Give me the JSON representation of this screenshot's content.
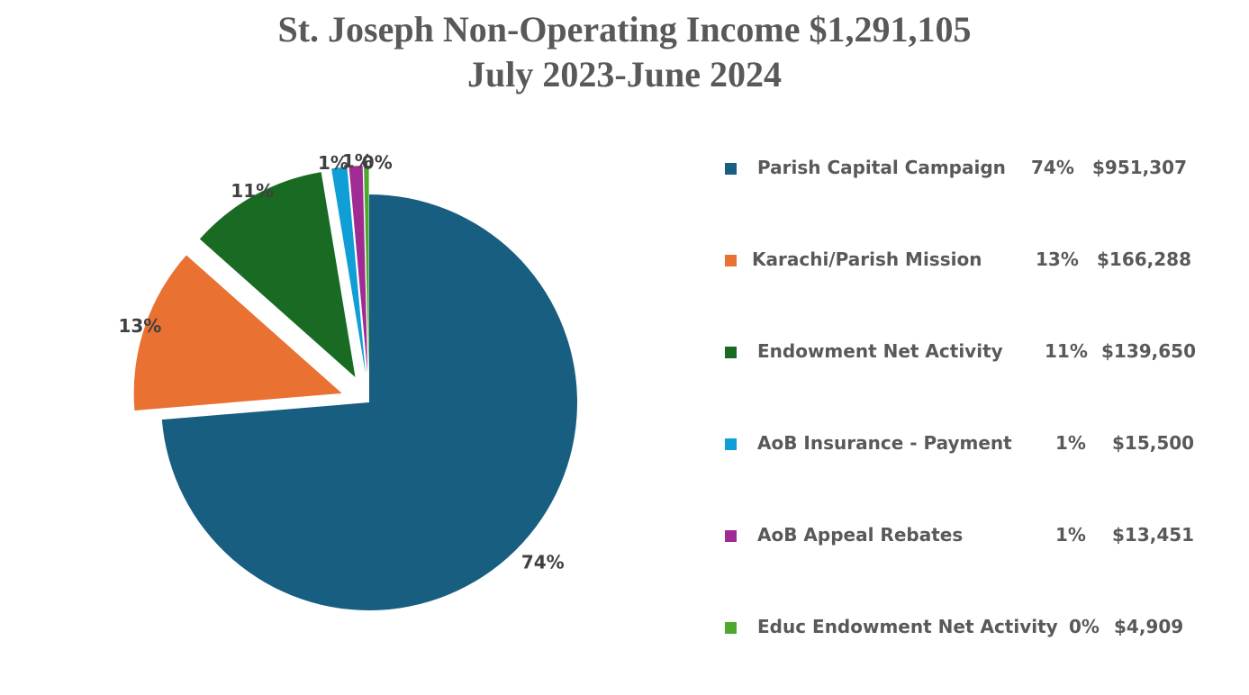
{
  "title": {
    "line1": "St. Joseph Non-Operating Income $1,291,105",
    "line2": "July 2023-June 2024"
  },
  "chart_data": {
    "type": "pie",
    "title": "St. Joseph Non-Operating Income $1,291,105 July 2023-June 2024",
    "categories": [
      "Parish Capital Campaign",
      "Karachi/Parish Mission",
      "Endowment Net Activity",
      "AoB Insurance - Payment",
      "AoB Appeal Rebates",
      "Educ Endowment Net Activity"
    ],
    "values": [
      951307,
      166288,
      139650,
      15500,
      13451,
      4909
    ],
    "percent_labels": [
      "74%",
      "13%",
      "11%",
      "1%",
      "1%",
      "0%"
    ],
    "value_labels": [
      "$951,307",
      "$166,288",
      "$139,650",
      "$15,500",
      "$13,451",
      "$4,909"
    ],
    "colors": [
      "#175e80",
      "#e97132",
      "#196b24",
      "#0f9ed5",
      "#a02b93",
      "#4ea72e"
    ],
    "exploded": [
      false,
      true,
      true,
      true,
      true,
      true
    ],
    "legend_position": "right"
  }
}
